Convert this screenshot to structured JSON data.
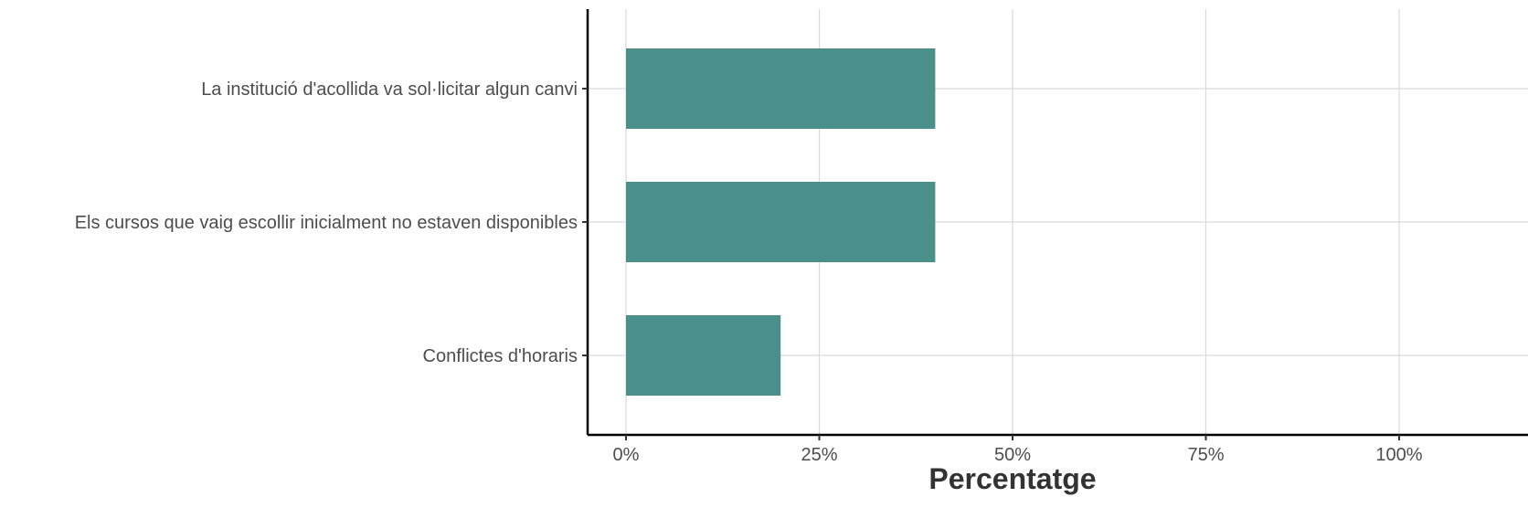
{
  "chart_data": {
    "type": "bar",
    "orientation": "horizontal",
    "categories": [
      "La institució d'acollida va sol·licitar algun canvi",
      "Els cursos que vaig escollir inicialment no estaven disponibles",
      "Conflictes d'horaris"
    ],
    "values": [
      40,
      40,
      20
    ],
    "xlabel": "Percentatge",
    "ylabel": "",
    "xlim": [
      0,
      100
    ],
    "x_ticks": [
      0,
      25,
      50,
      75,
      100
    ],
    "x_tick_labels": [
      "0%",
      "25%",
      "50%",
      "75%",
      "100%"
    ],
    "grid": true,
    "legend": "none",
    "colors": {
      "bar": "#4a8f89"
    }
  }
}
